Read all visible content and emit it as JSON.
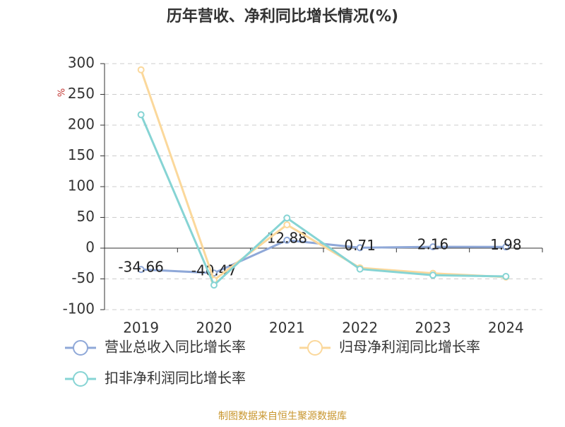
{
  "chart_data": {
    "type": "line",
    "title": "历年营收、净利同比增长情况(%)",
    "y_label": "%",
    "categories": [
      "2019",
      "2020",
      "2021",
      "2022",
      "2023",
      "2024"
    ],
    "series": [
      {
        "name": "营业总收入同比增长率",
        "color": "#8fa8d8",
        "values": [
          -34.66,
          -40.47,
          12.88,
          0.71,
          2.16,
          1.98
        ],
        "show_labels": true
      },
      {
        "name": "归母净利润同比增长率",
        "color": "#fbd89b",
        "values": [
          290,
          -52,
          38,
          -32,
          -41,
          -47
        ],
        "show_labels": false
      },
      {
        "name": "扣非净利润同比增长率",
        "color": "#86d4d4",
        "values": [
          217,
          -60,
          49,
          -34,
          -44,
          -46
        ],
        "show_labels": false
      }
    ],
    "ylim": [
      -100,
      300
    ],
    "yticks": [
      -100,
      -50,
      0,
      50,
      100,
      150,
      200,
      250,
      300
    ],
    "grid": true,
    "source": "制图数据来自恒生聚源数据库"
  }
}
